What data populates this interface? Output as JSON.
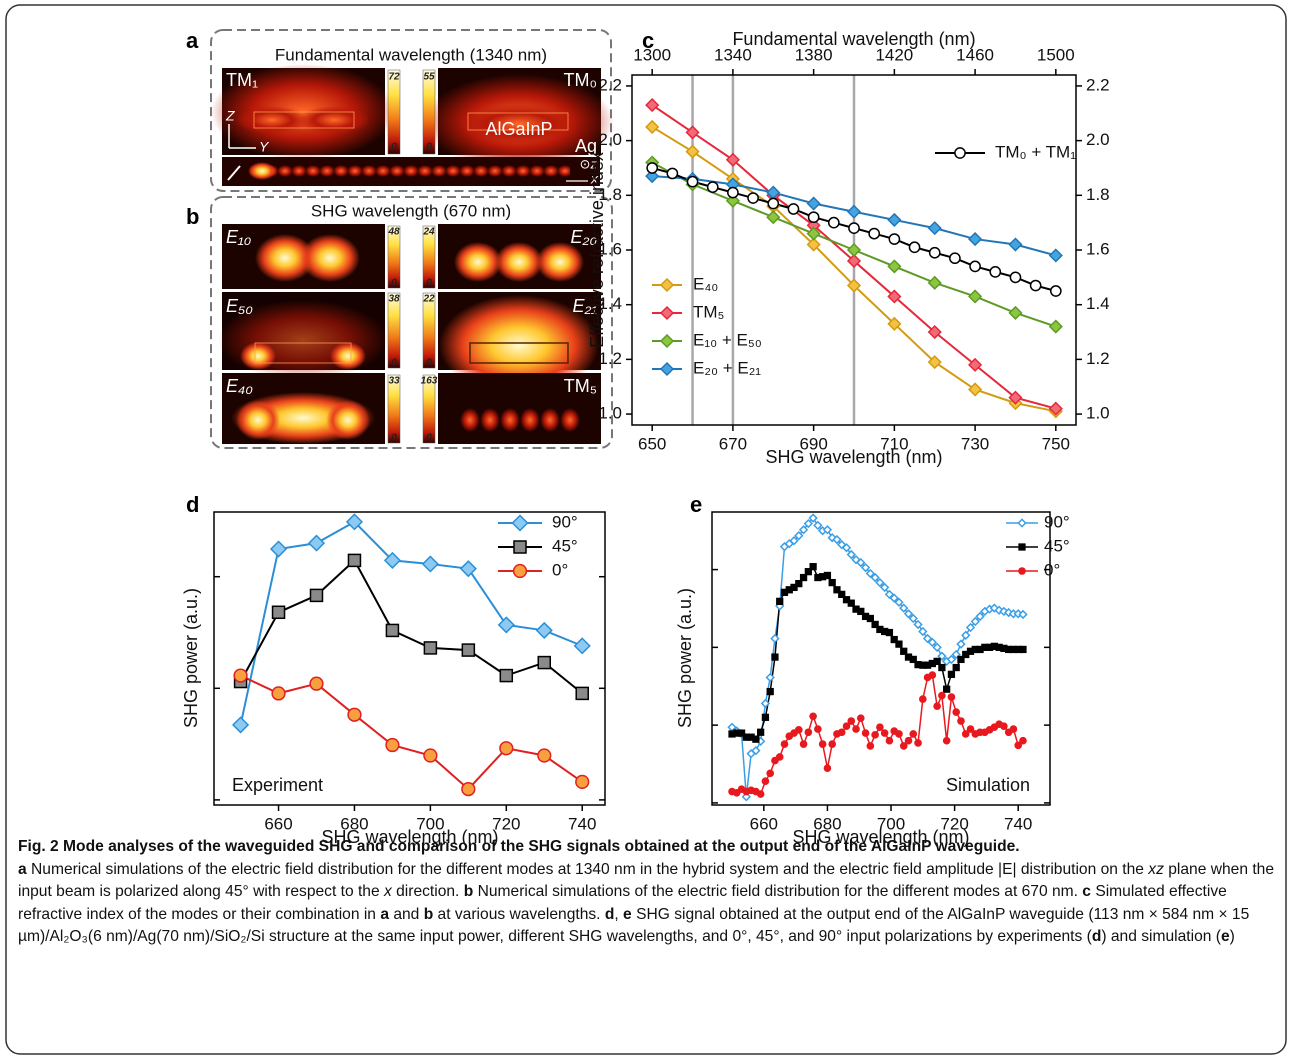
{
  "panels": {
    "a": {
      "label": "a",
      "title": "Fundamental wavelength (1340 nm)",
      "modes": [
        {
          "name": "TM₁",
          "max": 72,
          "min": 0
        },
        {
          "name": "TM₀",
          "max": 55,
          "min": 0
        }
      ],
      "labels": {
        "material": "AlGaInP",
        "metal": "Ag",
        "z_axis": "Z",
        "y_axis": "Y",
        "z_out": "⊙z",
        "x_axis": "x"
      }
    },
    "b": {
      "label": "b",
      "title": "SHG wavelength (670 nm)",
      "modes": [
        {
          "name": "E₁₀",
          "max": 48,
          "min": 0
        },
        {
          "name": "E₂₀",
          "max": 24,
          "min": 0
        },
        {
          "name": "E₅₀",
          "max": 38,
          "min": 0
        },
        {
          "name": "E₂₁",
          "max": 22,
          "min": 0
        },
        {
          "name": "E₄₀",
          "max": 33,
          "min": 0
        },
        {
          "name": "TM₅",
          "max": 163,
          "min": 0
        }
      ]
    }
  },
  "chart_data": [
    {
      "type": "line",
      "panel_label": "c",
      "xlabel": "SHG wavelength (nm)",
      "x2label": "Fundamental wavelength (nm)",
      "ylabel": "Effective refractive index",
      "xlim": [
        645,
        755
      ],
      "xticks": [
        650,
        670,
        690,
        710,
        730,
        750
      ],
      "x2lim": [
        1290,
        1510
      ],
      "x2ticks": [
        1300,
        1340,
        1380,
        1420,
        1460,
        1500
      ],
      "ylim": [
        0.96,
        2.24
      ],
      "yticks": [
        {
          "value": 1,
          "label": "1.0"
        },
        1.2,
        1.4,
        1.6,
        1.8,
        {
          "value": 2,
          "label": "2.0"
        },
        2.2
      ],
      "y2lim": [
        0.96,
        2.24
      ],
      "y2ticks": [
        {
          "value": 1,
          "label": "1.0"
        },
        1.2,
        1.4,
        1.6,
        1.8,
        {
          "value": 2,
          "label": "2.0"
        },
        2.2
      ],
      "vlines": [
        660,
        670,
        700
      ],
      "vline_color": "#a8a8a8",
      "series": [
        {
          "name": "E₄₀",
          "color": "#d49a12",
          "fill": "#f3c244",
          "marker": "diamond",
          "legend_loc": "lower left",
          "x": [
            650,
            660,
            670,
            680,
            690,
            700,
            710,
            720,
            730,
            740,
            750
          ],
          "values": [
            2.05,
            1.96,
            1.86,
            1.76,
            1.62,
            1.47,
            1.33,
            1.19,
            1.09,
            1.04,
            1.01
          ]
        },
        {
          "name": "TM₅",
          "color": "#e5283a",
          "fill": "#f26a78",
          "marker": "diamond",
          "legend_loc": "lower left",
          "x": [
            650,
            660,
            670,
            680,
            690,
            700,
            710,
            720,
            730,
            740,
            750
          ],
          "values": [
            2.13,
            2.03,
            1.93,
            1.8,
            1.69,
            1.56,
            1.43,
            1.3,
            1.18,
            1.06,
            1.02
          ]
        },
        {
          "name": "E₁₀ + E₅₀",
          "color": "#5e9a26",
          "fill": "#8cc63f",
          "marker": "diamond",
          "legend_loc": "lower left",
          "x": [
            650,
            660,
            670,
            680,
            690,
            700,
            710,
            720,
            730,
            740,
            750
          ],
          "values": [
            1.92,
            1.84,
            1.78,
            1.72,
            1.66,
            1.6,
            1.54,
            1.48,
            1.43,
            1.37,
            1.32
          ]
        },
        {
          "name": "E₂₀ + E₂₁",
          "color": "#2276b8",
          "fill": "#45a3e0",
          "marker": "diamond",
          "legend_loc": "lower left",
          "x": [
            650,
            660,
            670,
            680,
            690,
            700,
            710,
            720,
            730,
            740,
            750
          ],
          "values": [
            1.87,
            1.86,
            1.84,
            1.81,
            1.77,
            1.74,
            1.71,
            1.68,
            1.64,
            1.62,
            1.58
          ]
        },
        {
          "name": "TM₀ + TM₁",
          "color": "#000000",
          "fill": "#ffffff",
          "marker": "circle",
          "legend_loc": "upper right",
          "x": [
            650,
            655,
            660,
            665,
            670,
            675,
            680,
            685,
            690,
            695,
            700,
            705,
            710,
            715,
            720,
            725,
            730,
            735,
            740,
            745,
            750
          ],
          "values": [
            1.9,
            1.88,
            1.85,
            1.83,
            1.81,
            1.79,
            1.77,
            1.75,
            1.72,
            1.7,
            1.68,
            1.66,
            1.64,
            1.61,
            1.59,
            1.57,
            1.54,
            1.52,
            1.5,
            1.47,
            1.45
          ]
        }
      ]
    },
    {
      "type": "line",
      "panel_label": "d",
      "xlabel": "SHG wavelength (nm)",
      "ylabel": "SHG power (a.u.)",
      "annotation": "Experiment",
      "ylog": true,
      "xlim": [
        643,
        746
      ],
      "xticks": [
        660,
        680,
        700,
        720,
        740
      ],
      "ylim": [
        0.009,
        3.8
      ],
      "yticks": [
        0.01,
        0.1,
        1
      ],
      "ytick_labels": false,
      "legend_loc": "upper right",
      "x": [
        650,
        660,
        670,
        680,
        690,
        700,
        710,
        720,
        730,
        740
      ],
      "series": [
        {
          "name": "90°",
          "color": "#2b8fd6",
          "fill": "#8ccaf4",
          "marker": "diamond",
          "values": [
            0.047,
            1.77,
            2.0,
            3.1,
            1.4,
            1.3,
            1.18,
            0.37,
            0.33,
            0.24
          ]
        },
        {
          "name": "45°",
          "color": "#000000",
          "fill": "#8a8a8a",
          "marker": "square",
          "values": [
            0.115,
            0.48,
            0.68,
            1.4,
            0.33,
            0.23,
            0.22,
            0.13,
            0.17,
            0.09
          ]
        },
        {
          "name": "0°",
          "color": "#e02020",
          "fill": "#f8a040",
          "marker": "circle",
          "values": [
            0.13,
            0.09,
            0.11,
            0.058,
            0.031,
            0.025,
            0.0125,
            0.029,
            0.025,
            0.0145
          ]
        }
      ]
    },
    {
      "type": "line",
      "panel_label": "e",
      "xlabel": "SHG wavelength (nm)",
      "ylabel": "SHG power (a.u.)",
      "annotation": "Simulation",
      "ylog": true,
      "xlim": [
        643.7,
        750
      ],
      "xticks": [
        660,
        680,
        700,
        720,
        740
      ],
      "ylim": [
        0.00094,
        5.5
      ],
      "yticks": [
        0.001,
        0.01,
        0.1,
        1
      ],
      "ytick_labels": false,
      "legend_loc": "upper right",
      "x": [
        650,
        651.5,
        653,
        654.5,
        656,
        657.5,
        659,
        660.5,
        662,
        663.5,
        665,
        666.5,
        668,
        669.5,
        671,
        672.5,
        674,
        675.5,
        677,
        678.5,
        680,
        681.5,
        683,
        684.5,
        686,
        687.5,
        689,
        690.5,
        692,
        693.5,
        695,
        696.5,
        698,
        699.5,
        701,
        702.5,
        704,
        705.5,
        707,
        708.5,
        710,
        711.5,
        713,
        714.5,
        716,
        717.5,
        719,
        720.5,
        722,
        723.5,
        725,
        726.5,
        728,
        729.5,
        731,
        732.5,
        734,
        735.5,
        737,
        738.5,
        740,
        741.5
      ],
      "series": [
        {
          "name": "90°",
          "color": "#3a9ee6",
          "fill": "#ffffff",
          "marker": "diamond",
          "values": [
            0.0094,
            0.0084,
            0.0077,
            0.0012,
            0.0043,
            0.0047,
            0.0062,
            0.019,
            0.041,
            0.13,
            0.34,
            1.97,
            2.15,
            2.35,
            2.73,
            3.25,
            3.9,
            4.6,
            3.7,
            3.16,
            3.25,
            2.57,
            2.43,
            2.09,
            1.91,
            1.56,
            1.34,
            1.23,
            1.06,
            0.89,
            0.79,
            0.68,
            0.59,
            0.48,
            0.43,
            0.38,
            0.32,
            0.27,
            0.235,
            0.197,
            0.16,
            0.13,
            0.116,
            0.1,
            0.077,
            0.066,
            0.07,
            0.081,
            0.11,
            0.143,
            0.18,
            0.215,
            0.25,
            0.29,
            0.31,
            0.32,
            0.3,
            0.29,
            0.28,
            0.27,
            0.27,
            0.265
          ]
        },
        {
          "name": "45°",
          "color": "#000000",
          "fill": "#000000",
          "marker": "square",
          "values": [
            0.0077,
            0.0079,
            0.0079,
            0.007,
            0.007,
            0.0066,
            0.0081,
            0.0126,
            0.027,
            0.075,
            0.39,
            0.51,
            0.55,
            0.59,
            0.66,
            0.79,
            0.94,
            1.09,
            0.79,
            0.81,
            0.84,
            0.68,
            0.55,
            0.48,
            0.41,
            0.37,
            0.31,
            0.29,
            0.25,
            0.235,
            0.197,
            0.17,
            0.16,
            0.155,
            0.126,
            0.11,
            0.089,
            0.075,
            0.07,
            0.06,
            0.059,
            0.059,
            0.062,
            0.066,
            0.055,
            0.029,
            0.045,
            0.055,
            0.07,
            0.081,
            0.089,
            0.094,
            0.094,
            0.1,
            0.1,
            0.103,
            0.1,
            0.097,
            0.094,
            0.094,
            0.094,
            0.094
          ]
        },
        {
          "name": "0°",
          "color": "#e8191e",
          "fill": "#e8191e",
          "marker": "circle",
          "values": [
            0.0014,
            0.00135,
            0.0015,
            0.0014,
            0.00145,
            0.0014,
            0.0013,
            0.0019,
            0.0024,
            0.0035,
            0.0039,
            0.0057,
            0.0072,
            0.0079,
            0.0087,
            0.0057,
            0.0081,
            0.013,
            0.0089,
            0.0057,
            0.0028,
            0.0057,
            0.0077,
            0.0081,
            0.0097,
            0.0113,
            0.0089,
            0.0123,
            0.0079,
            0.0054,
            0.0075,
            0.0094,
            0.0079,
            0.0063,
            0.0084,
            0.0077,
            0.0054,
            0.0063,
            0.0077,
            0.0059,
            0.0216,
            0.041,
            0.044,
            0.0175,
            0.024,
            0.0063,
            0.023,
            0.0147,
            0.0113,
            0.0077,
            0.0089,
            0.0077,
            0.0081,
            0.0081,
            0.0087,
            0.0094,
            0.0103,
            0.0097,
            0.0081,
            0.0089,
            0.0055,
            0.0063
          ]
        }
      ]
    }
  ],
  "caption": {
    "title": "Fig. 2 Mode analyses of the waveguided SHG and comparison of the SHG signals obtained at the output end of the AlGaInP waveguide.",
    "body": [
      {
        "text": "a",
        "style": "bold"
      },
      {
        "text": " Numerical simulations of the electric field distribution for the different modes at 1340 nm in the hybrid system and the electric field amplitude |E| distribution on the "
      },
      {
        "text": "xz",
        "style": "italic"
      },
      {
        "text": " plane when the input beam is polarized along 45° with respect to the "
      },
      {
        "text": "x",
        "style": "italic"
      },
      {
        "text": " direction. "
      },
      {
        "text": "b",
        "style": "bold"
      },
      {
        "text": " Numerical simulations of the electric field distribution for the different modes at 670 nm. "
      },
      {
        "text": "c",
        "style": "bold"
      },
      {
        "text": " Simulated effective refractive index of the modes or their combination in "
      },
      {
        "text": "a",
        "style": "bold"
      },
      {
        "text": " and "
      },
      {
        "text": "b",
        "style": "bold"
      },
      {
        "text": " at various wavelengths. "
      },
      {
        "text": "d",
        "style": "bold"
      },
      {
        "text": ", "
      },
      {
        "text": "e",
        "style": "bold"
      },
      {
        "text": " SHG signal obtained at the output end of the AlGaInP waveguide (113 nm × 584 nm × 15 µm)/Al₂O₃(6 nm)/Ag(70 nm)/SiO₂/Si structure at the same input power, different SHG wavelengths, and 0°, 45°, and 90° input polarizations by experiments ("
      },
      {
        "text": "d",
        "style": "bold"
      },
      {
        "text": ") and simulation ("
      },
      {
        "text": "e",
        "style": "bold"
      },
      {
        "text": ")"
      }
    ]
  }
}
